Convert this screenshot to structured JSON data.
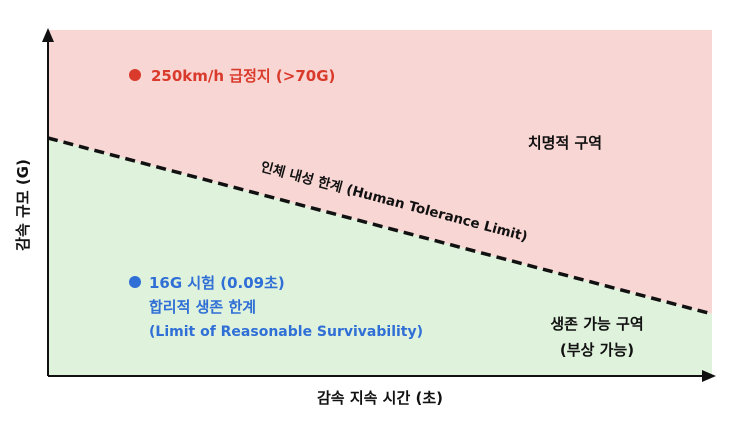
{
  "chart_data": {
    "type": "area",
    "xlabel": "감속 지속 시간 (초)",
    "ylabel": "감속 규모 (G)",
    "boundary": {
      "label": "인체 내성 한계 (Human Tolerance Limit)"
    },
    "regions": [
      {
        "name": "치명적 구역",
        "color": "#f8d6d3"
      },
      {
        "name": "생존 가능 구역",
        "note": "(부상 가능)",
        "color": "#dff2dc"
      }
    ],
    "points": [
      {
        "lines": [
          "250km/h 급정지 (>70G)"
        ],
        "color": "#d93a2b"
      },
      {
        "lines": [
          "16G 시험 (0.09초)",
          "합리적 생존 한계",
          "(Limit of Reasonable Survivability)"
        ],
        "color": "#2f6fd6"
      }
    ],
    "grid": false,
    "colors": {
      "axis": "#111111",
      "boundary": "#111111",
      "text": "#111111"
    }
  }
}
